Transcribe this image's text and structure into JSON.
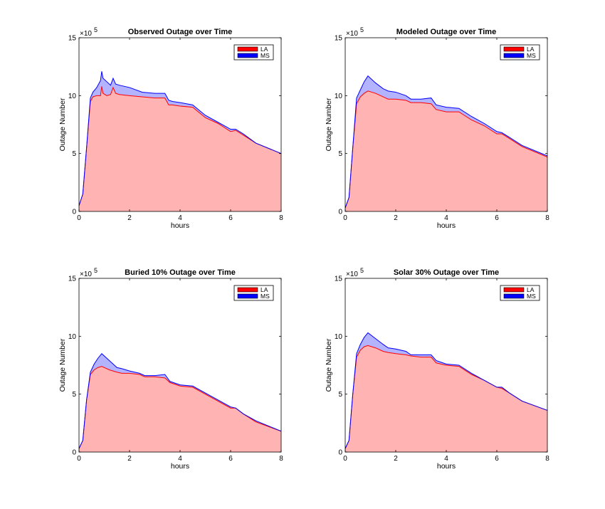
{
  "figure": {
    "multiplier_base": "×10",
    "multiplier_exponent": "5"
  },
  "chart_data": [
    {
      "type": "area",
      "title": "Observed Outage over Time",
      "xlabel": "hours",
      "ylabel": "Outage Number",
      "xlim": [
        0,
        8
      ],
      "ylim": [
        0,
        15
      ],
      "xticks": [
        "0",
        "2",
        "4",
        "6",
        "8"
      ],
      "yticks": [
        "0",
        "5",
        "10",
        "15"
      ],
      "y_multiplier": "1e5",
      "stacked": true,
      "legend_position": "top-right",
      "colors": {
        "LA_fill": "#ffb3b3",
        "LA_line": "#ff0000",
        "MS_fill": "#b3b3ff",
        "MS_line": "#0000ff"
      },
      "series": [
        {
          "name": "LA",
          "points": [
            [
              0,
              0.5
            ],
            [
              0.15,
              1.5
            ],
            [
              0.3,
              5.5
            ],
            [
              0.45,
              9.5
            ],
            [
              0.55,
              9.9
            ],
            [
              0.7,
              10.0
            ],
            [
              0.85,
              10.0
            ],
            [
              0.9,
              10.8
            ],
            [
              0.95,
              10.2
            ],
            [
              1.1,
              10.0
            ],
            [
              1.25,
              10.1
            ],
            [
              1.35,
              10.7
            ],
            [
              1.45,
              10.2
            ],
            [
              1.6,
              10.1
            ],
            [
              2.0,
              10.0
            ],
            [
              2.5,
              9.9
            ],
            [
              3.0,
              9.8
            ],
            [
              3.4,
              9.8
            ],
            [
              3.55,
              9.2
            ],
            [
              3.7,
              9.2
            ],
            [
              4.0,
              9.1
            ],
            [
              4.5,
              9.0
            ],
            [
              5.0,
              8.1
            ],
            [
              5.5,
              7.6
            ],
            [
              6.0,
              6.9
            ],
            [
              6.2,
              7.0
            ],
            [
              6.5,
              6.6
            ],
            [
              7.0,
              5.9
            ],
            [
              8.0,
              5.0
            ]
          ]
        },
        {
          "name": "MS",
          "points": [
            [
              0,
              0.5
            ],
            [
              0.15,
              1.5
            ],
            [
              0.3,
              5.5
            ],
            [
              0.45,
              9.8
            ],
            [
              0.55,
              10.3
            ],
            [
              0.7,
              10.7
            ],
            [
              0.85,
              11.3
            ],
            [
              0.9,
              12.1
            ],
            [
              0.95,
              11.5
            ],
            [
              1.1,
              11.2
            ],
            [
              1.25,
              10.9
            ],
            [
              1.35,
              11.5
            ],
            [
              1.45,
              11.0
            ],
            [
              1.6,
              10.9
            ],
            [
              2.0,
              10.7
            ],
            [
              2.5,
              10.3
            ],
            [
              3.0,
              10.2
            ],
            [
              3.4,
              10.2
            ],
            [
              3.55,
              9.6
            ],
            [
              3.7,
              9.5
            ],
            [
              4.0,
              9.4
            ],
            [
              4.5,
              9.2
            ],
            [
              5.0,
              8.3
            ],
            [
              5.5,
              7.7
            ],
            [
              6.0,
              7.1
            ],
            [
              6.2,
              7.1
            ],
            [
              6.5,
              6.7
            ],
            [
              7.0,
              5.9
            ],
            [
              8.0,
              5.0
            ]
          ]
        }
      ]
    },
    {
      "type": "area",
      "title": "Modeled Outage over Time",
      "xlabel": "hours",
      "ylabel": "Outage Number",
      "xlim": [
        0,
        8
      ],
      "ylim": [
        0,
        15
      ],
      "xticks": [
        "0",
        "2",
        "4",
        "6",
        "8"
      ],
      "yticks": [
        "0",
        "5",
        "10",
        "15"
      ],
      "y_multiplier": "1e5",
      "stacked": true,
      "legend_position": "top-right",
      "colors": {
        "LA_fill": "#ffb3b3",
        "LA_line": "#ff0000",
        "MS_fill": "#b3b3ff",
        "MS_line": "#0000ff"
      },
      "series": [
        {
          "name": "LA",
          "points": [
            [
              0,
              0.3
            ],
            [
              0.15,
              1.2
            ],
            [
              0.3,
              5.5
            ],
            [
              0.45,
              9.3
            ],
            [
              0.6,
              9.9
            ],
            [
              0.75,
              10.2
            ],
            [
              0.9,
              10.4
            ],
            [
              1.2,
              10.2
            ],
            [
              1.5,
              9.9
            ],
            [
              1.7,
              9.7
            ],
            [
              2.0,
              9.7
            ],
            [
              2.4,
              9.6
            ],
            [
              2.6,
              9.4
            ],
            [
              3.0,
              9.4
            ],
            [
              3.4,
              9.3
            ],
            [
              3.6,
              8.8
            ],
            [
              4.0,
              8.6
            ],
            [
              4.5,
              8.6
            ],
            [
              5.0,
              7.9
            ],
            [
              5.5,
              7.4
            ],
            [
              6.0,
              6.7
            ],
            [
              6.2,
              6.7
            ],
            [
              6.5,
              6.3
            ],
            [
              7.0,
              5.6
            ],
            [
              8.0,
              4.7
            ]
          ]
        },
        {
          "name": "MS",
          "points": [
            [
              0,
              0.3
            ],
            [
              0.15,
              1.2
            ],
            [
              0.3,
              5.5
            ],
            [
              0.45,
              9.8
            ],
            [
              0.6,
              10.5
            ],
            [
              0.75,
              11.2
            ],
            [
              0.9,
              11.7
            ],
            [
              1.2,
              11.1
            ],
            [
              1.5,
              10.6
            ],
            [
              1.7,
              10.4
            ],
            [
              2.0,
              10.3
            ],
            [
              2.4,
              10.0
            ],
            [
              2.6,
              9.7
            ],
            [
              3.0,
              9.7
            ],
            [
              3.4,
              9.8
            ],
            [
              3.6,
              9.2
            ],
            [
              4.0,
              9.0
            ],
            [
              4.5,
              8.9
            ],
            [
              5.0,
              8.2
            ],
            [
              5.5,
              7.6
            ],
            [
              6.0,
              6.9
            ],
            [
              6.2,
              6.8
            ],
            [
              6.5,
              6.4
            ],
            [
              7.0,
              5.7
            ],
            [
              8.0,
              4.8
            ]
          ]
        }
      ]
    },
    {
      "type": "area",
      "title": "Buried 10% Outage over Time",
      "xlabel": "hours",
      "ylabel": "Outage Number",
      "xlim": [
        0,
        8
      ],
      "ylim": [
        0,
        15
      ],
      "xticks": [
        "0",
        "2",
        "4",
        "6",
        "8"
      ],
      "yticks": [
        "0",
        "5",
        "10",
        "15"
      ],
      "y_multiplier": "1e5",
      "stacked": true,
      "legend_position": "top-right",
      "colors": {
        "LA_fill": "#ffb3b3",
        "LA_line": "#ff0000",
        "MS_fill": "#b3b3ff",
        "MS_line": "#0000ff"
      },
      "series": [
        {
          "name": "LA",
          "points": [
            [
              0,
              0.3
            ],
            [
              0.15,
              1.0
            ],
            [
              0.3,
              4.5
            ],
            [
              0.45,
              6.7
            ],
            [
              0.6,
              7.1
            ],
            [
              0.75,
              7.3
            ],
            [
              0.9,
              7.4
            ],
            [
              1.2,
              7.1
            ],
            [
              1.5,
              6.9
            ],
            [
              1.7,
              6.8
            ],
            [
              2.0,
              6.8
            ],
            [
              2.4,
              6.7
            ],
            [
              2.6,
              6.5
            ],
            [
              3.0,
              6.5
            ],
            [
              3.4,
              6.4
            ],
            [
              3.6,
              6.0
            ],
            [
              4.0,
              5.7
            ],
            [
              4.5,
              5.6
            ],
            [
              5.0,
              5.0
            ],
            [
              5.5,
              4.4
            ],
            [
              6.0,
              3.8
            ],
            [
              6.2,
              3.8
            ],
            [
              6.5,
              3.3
            ],
            [
              7.0,
              2.6
            ],
            [
              8.0,
              1.8
            ]
          ]
        },
        {
          "name": "MS",
          "points": [
            [
              0,
              0.3
            ],
            [
              0.15,
              1.0
            ],
            [
              0.3,
              4.5
            ],
            [
              0.45,
              6.9
            ],
            [
              0.6,
              7.6
            ],
            [
              0.75,
              8.1
            ],
            [
              0.9,
              8.5
            ],
            [
              1.2,
              7.9
            ],
            [
              1.5,
              7.3
            ],
            [
              1.7,
              7.2
            ],
            [
              2.0,
              7.0
            ],
            [
              2.4,
              6.8
            ],
            [
              2.6,
              6.6
            ],
            [
              3.0,
              6.6
            ],
            [
              3.4,
              6.7
            ],
            [
              3.6,
              6.1
            ],
            [
              4.0,
              5.8
            ],
            [
              4.5,
              5.7
            ],
            [
              5.0,
              5.1
            ],
            [
              5.5,
              4.5
            ],
            [
              6.0,
              3.9
            ],
            [
              6.2,
              3.8
            ],
            [
              6.5,
              3.3
            ],
            [
              7.0,
              2.7
            ],
            [
              8.0,
              1.8
            ]
          ]
        }
      ]
    },
    {
      "type": "area",
      "title": "Solar 30% Outage over Time",
      "xlabel": "hours",
      "ylabel": "Outage Number",
      "xlim": [
        0,
        8
      ],
      "ylim": [
        0,
        15
      ],
      "xticks": [
        "0",
        "2",
        "4",
        "6",
        "8"
      ],
      "yticks": [
        "0",
        "5",
        "10",
        "15"
      ],
      "y_multiplier": "1e5",
      "stacked": true,
      "legend_position": "top-right",
      "colors": {
        "LA_fill": "#ffb3b3",
        "LA_line": "#ff0000",
        "MS_fill": "#b3b3ff",
        "MS_line": "#0000ff"
      },
      "series": [
        {
          "name": "LA",
          "points": [
            [
              0,
              0.3
            ],
            [
              0.15,
              1.0
            ],
            [
              0.3,
              5.0
            ],
            [
              0.45,
              8.2
            ],
            [
              0.6,
              8.8
            ],
            [
              0.75,
              9.1
            ],
            [
              0.9,
              9.2
            ],
            [
              1.2,
              9.0
            ],
            [
              1.5,
              8.7
            ],
            [
              1.7,
              8.6
            ],
            [
              2.0,
              8.5
            ],
            [
              2.4,
              8.4
            ],
            [
              2.6,
              8.3
            ],
            [
              3.0,
              8.2
            ],
            [
              3.4,
              8.2
            ],
            [
              3.6,
              7.7
            ],
            [
              4.0,
              7.5
            ],
            [
              4.5,
              7.4
            ],
            [
              5.0,
              6.7
            ],
            [
              5.5,
              6.2
            ],
            [
              6.0,
              5.6
            ],
            [
              6.2,
              5.5
            ],
            [
              6.5,
              5.1
            ],
            [
              7.0,
              4.4
            ],
            [
              8.0,
              3.6
            ]
          ]
        },
        {
          "name": "MS",
          "points": [
            [
              0,
              0.3
            ],
            [
              0.15,
              1.0
            ],
            [
              0.3,
              5.0
            ],
            [
              0.45,
              8.5
            ],
            [
              0.6,
              9.3
            ],
            [
              0.75,
              9.9
            ],
            [
              0.9,
              10.3
            ],
            [
              1.2,
              9.8
            ],
            [
              1.5,
              9.3
            ],
            [
              1.7,
              9.0
            ],
            [
              2.0,
              8.9
            ],
            [
              2.4,
              8.7
            ],
            [
              2.6,
              8.4
            ],
            [
              3.0,
              8.4
            ],
            [
              3.4,
              8.4
            ],
            [
              3.6,
              7.9
            ],
            [
              4.0,
              7.6
            ],
            [
              4.5,
              7.5
            ],
            [
              5.0,
              6.8
            ],
            [
              5.5,
              6.2
            ],
            [
              6.0,
              5.6
            ],
            [
              6.2,
              5.6
            ],
            [
              6.5,
              5.1
            ],
            [
              7.0,
              4.4
            ],
            [
              8.0,
              3.6
            ]
          ]
        }
      ]
    }
  ]
}
